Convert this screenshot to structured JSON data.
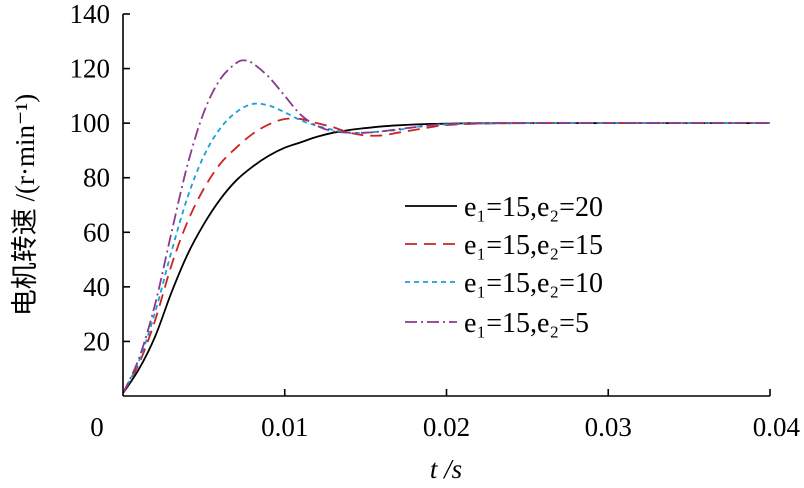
{
  "chart_data": {
    "type": "line",
    "title": "",
    "xlabel": "t /s",
    "ylabel": "电机转速 /(r·min⁻¹)",
    "xlim": [
      0,
      0.04
    ],
    "ylim": [
      0,
      140
    ],
    "xticks": [
      0,
      0.01,
      0.02,
      0.03,
      0.04
    ],
    "xtick_labels": [
      "0",
      "0.01",
      "0.02",
      "0.03",
      "0.04"
    ],
    "yticks": [
      20,
      40,
      60,
      80,
      100,
      120,
      140
    ],
    "ytick_labels": [
      "20",
      "40",
      "60",
      "80",
      "100",
      "120",
      "140"
    ],
    "grid": false,
    "legend_position": "right",
    "series": [
      {
        "name": "e₁=15,e₂=20",
        "color": "#000000",
        "dash": "solid",
        "x": [
          0,
          0.001,
          0.002,
          0.003,
          0.004,
          0.005,
          0.006,
          0.007,
          0.008,
          0.009,
          0.01,
          0.011,
          0.012,
          0.013,
          0.014,
          0.015,
          0.016,
          0.017,
          0.018,
          0.019,
          0.02,
          0.022,
          0.025,
          0.03,
          0.035,
          0.04
        ],
        "y": [
          1,
          10,
          22,
          38,
          52,
          63,
          72,
          79,
          84,
          88,
          91,
          93,
          95,
          96.5,
          97.5,
          98.2,
          98.8,
          99.2,
          99.5,
          99.7,
          99.8,
          100,
          100,
          100,
          100,
          100
        ]
      },
      {
        "name": "e₁=15,e₂=15",
        "color": "#cc2222",
        "dash": "long-dash",
        "x": [
          0,
          0.001,
          0.002,
          0.003,
          0.004,
          0.005,
          0.006,
          0.007,
          0.008,
          0.009,
          0.01,
          0.011,
          0.012,
          0.013,
          0.014,
          0.015,
          0.016,
          0.017,
          0.018,
          0.019,
          0.02,
          0.022,
          0.025,
          0.03,
          0.035,
          0.04
        ],
        "y": [
          1,
          12,
          28,
          48,
          64,
          76,
          85,
          91,
          96,
          99.5,
          101.5,
          101.5,
          100,
          98.5,
          96.5,
          95.5,
          95.5,
          96.5,
          97.5,
          98.5,
          99.3,
          99.8,
          100,
          100,
          100,
          100
        ]
      },
      {
        "name": "e₁=15,e₂=10",
        "color": "#1aa0d8",
        "dash": "short-dash",
        "x": [
          0,
          0.001,
          0.002,
          0.003,
          0.004,
          0.005,
          0.006,
          0.007,
          0.008,
          0.009,
          0.01,
          0.011,
          0.012,
          0.013,
          0.014,
          0.015,
          0.016,
          0.017,
          0.018,
          0.019,
          0.02,
          0.022,
          0.025,
          0.03,
          0.035,
          0.04
        ],
        "y": [
          1,
          13,
          31,
          53,
          73,
          88,
          98,
          104,
          107,
          106.5,
          104,
          101,
          99,
          97.5,
          96.5,
          96.5,
          97,
          97.5,
          98.5,
          99.2,
          99.6,
          99.9,
          100,
          100,
          100,
          100
        ]
      },
      {
        "name": "e₁=15,e₂=5",
        "color": "#8a3a8a",
        "dash": "dash-dot",
        "x": [
          0,
          0.001,
          0.002,
          0.003,
          0.004,
          0.005,
          0.006,
          0.007,
          0.0075,
          0.008,
          0.009,
          0.01,
          0.011,
          0.012,
          0.013,
          0.014,
          0.015,
          0.016,
          0.017,
          0.018,
          0.019,
          0.02,
          0.022,
          0.025,
          0.03,
          0.035,
          0.04
        ],
        "y": [
          1,
          14,
          34,
          60,
          85,
          104,
          116,
          122,
          123,
          122,
          117,
          110,
          103,
          99,
          97,
          96.5,
          96.5,
          97,
          97.8,
          98.5,
          99.2,
          99.6,
          99.9,
          100,
          100,
          100,
          100
        ]
      }
    ]
  }
}
